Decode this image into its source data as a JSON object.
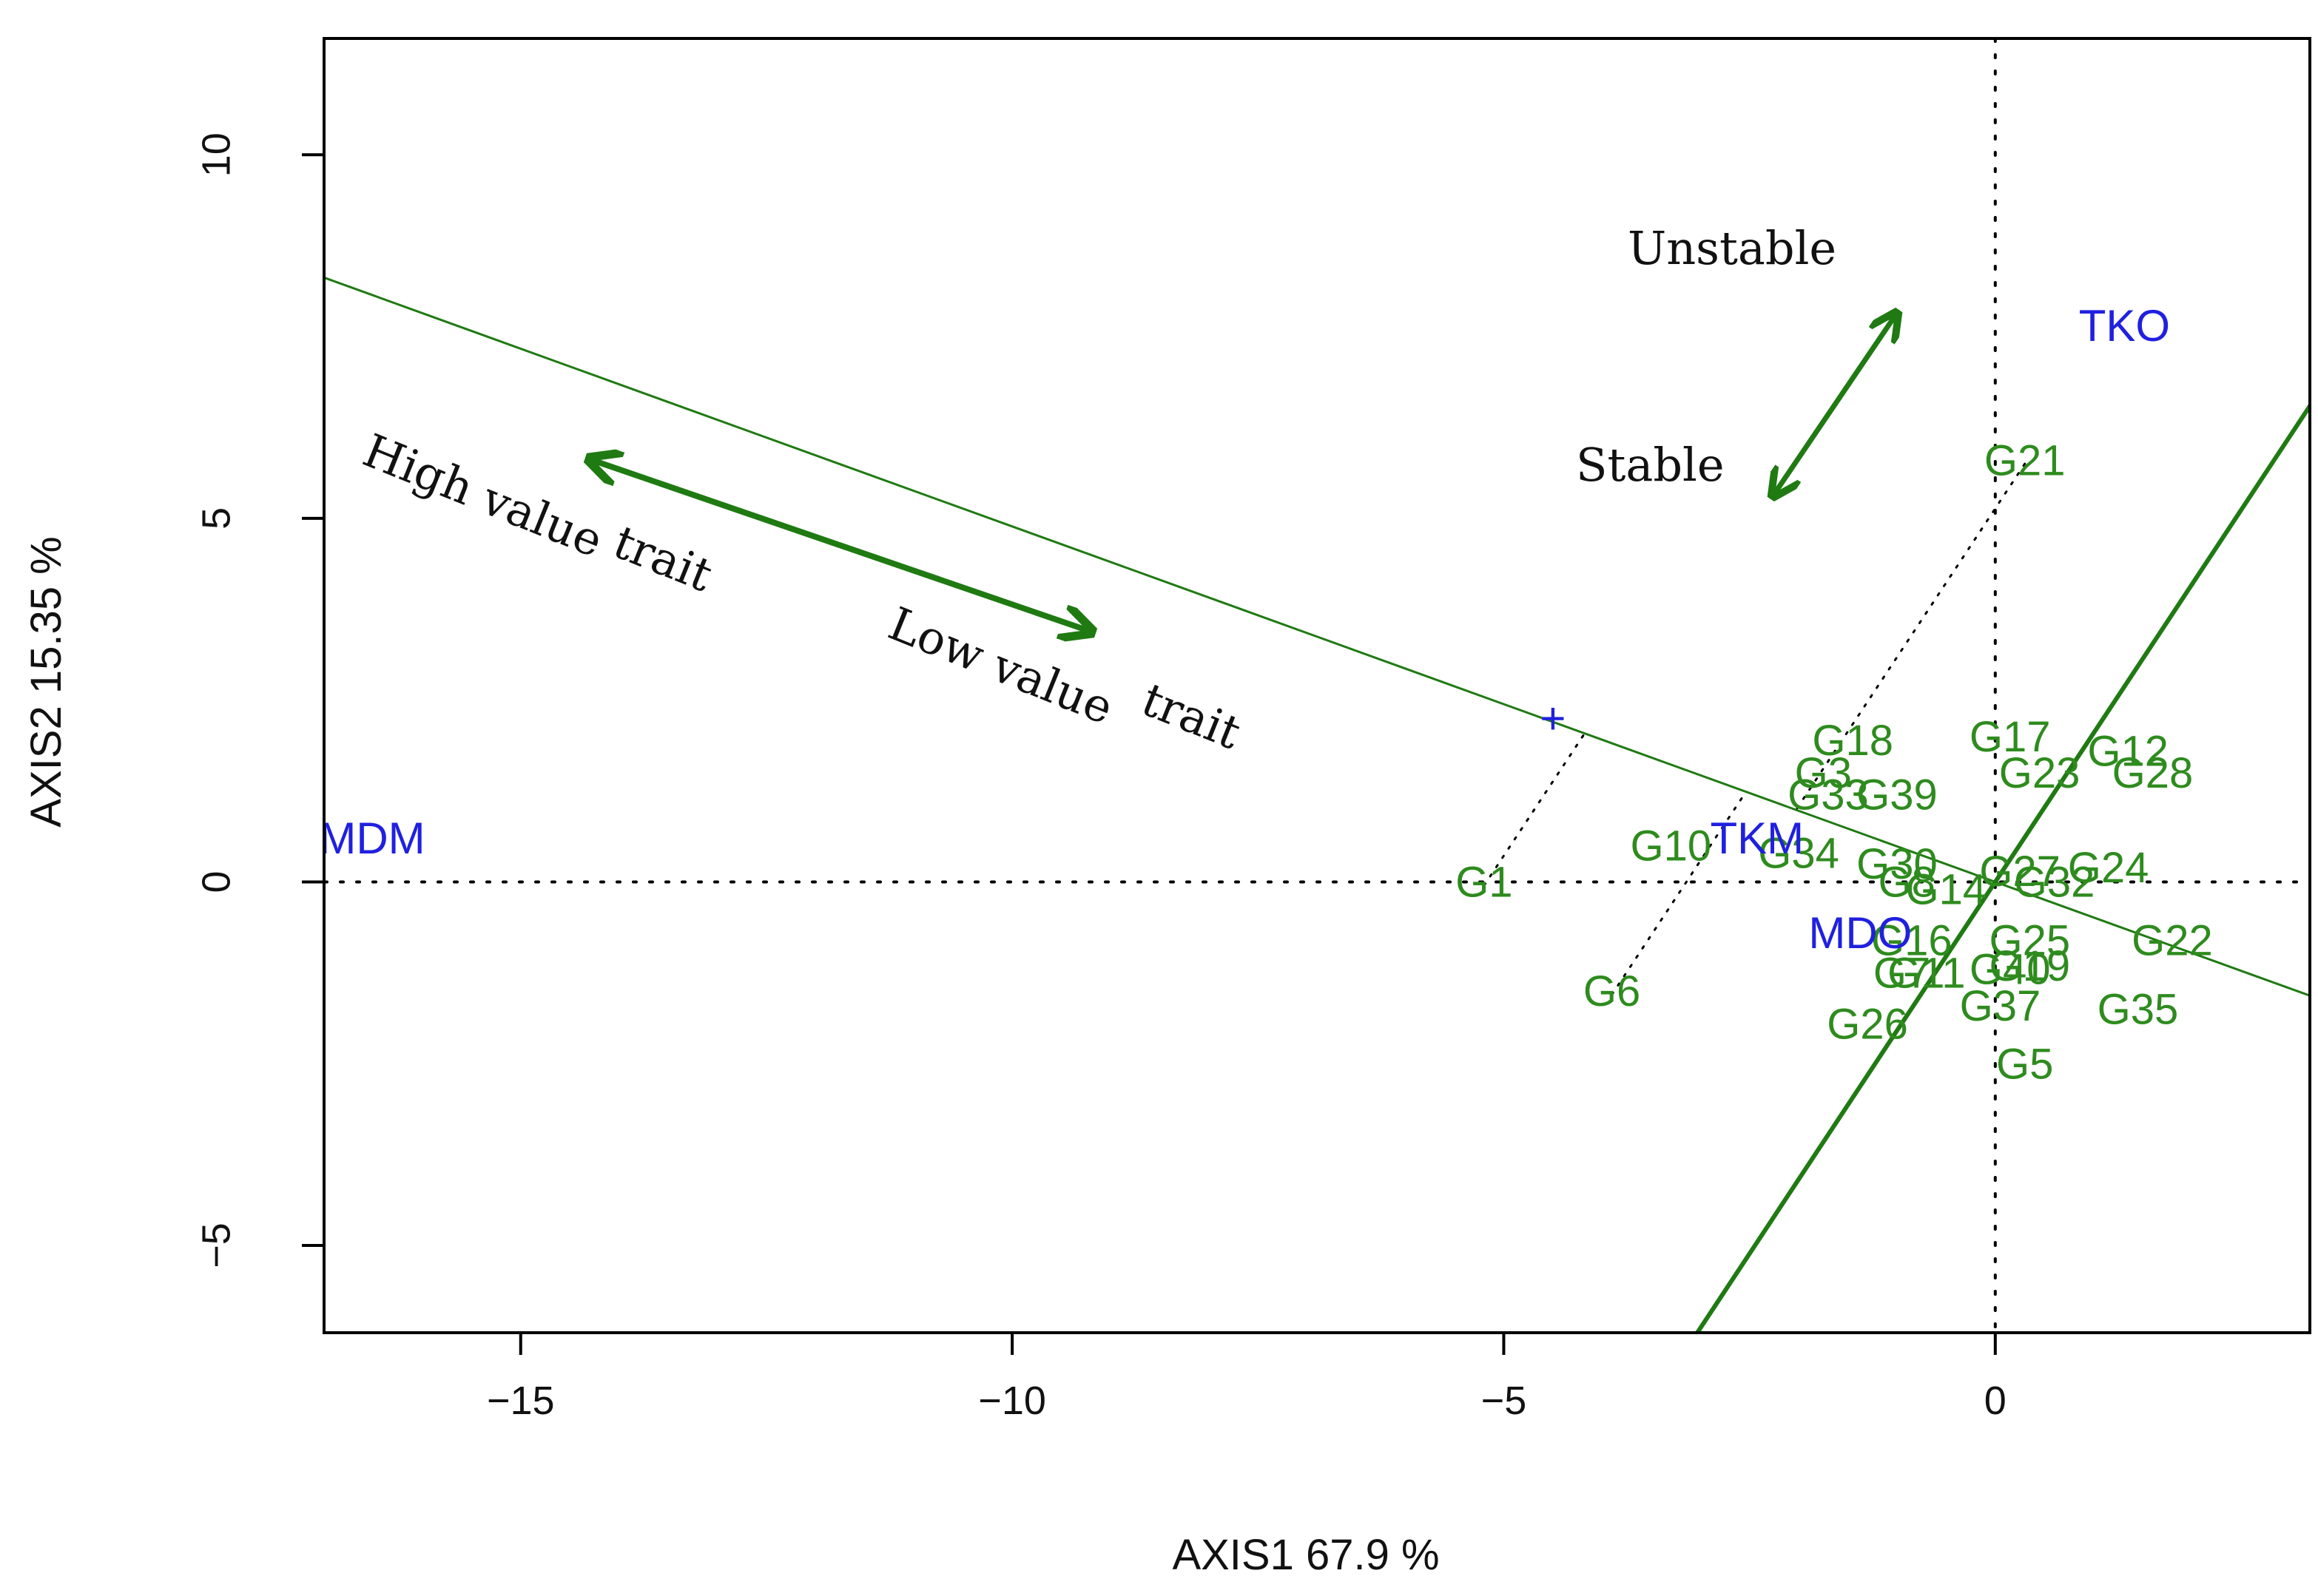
{
  "chart_data": {
    "type": "scatter",
    "title": "",
    "xlabel": "AXIS1 67.9 %",
    "ylabel": "AXIS2 15.35 %",
    "xlim": [
      -17,
      3.2
    ],
    "ylim": [
      -6.2,
      11.6
    ],
    "xticks": [
      -15,
      -10,
      -5,
      0
    ],
    "yticks": [
      -5,
      0,
      5,
      10
    ],
    "colors": {
      "genotype": "#2e8b1e",
      "environment": "#2020e0",
      "line": "#1f7a12",
      "axis": "#000000"
    },
    "environments": [
      {
        "label": "MDM",
        "x": -17.05,
        "y": 0.55
      },
      {
        "label": "TKO",
        "x": 0.85,
        "y": 7.6
      },
      {
        "label": "TKM",
        "x": -2.9,
        "y": 0.55
      },
      {
        "label": "MDO",
        "x": -1.9,
        "y": -0.75
      }
    ],
    "average_environment": {
      "label": "+",
      "x": -4.5,
      "y": 2.2
    },
    "genotypes": [
      {
        "label": "G1",
        "x": -5.2,
        "y": -0.05
      },
      {
        "label": "G6",
        "x": -3.9,
        "y": -1.55
      },
      {
        "label": "G21",
        "x": 0.3,
        "y": 5.75
      },
      {
        "label": "G18",
        "x": -1.45,
        "y": 1.9
      },
      {
        "label": "G17",
        "x": 0.15,
        "y": 1.95
      },
      {
        "label": "G12",
        "x": 1.35,
        "y": 1.75
      },
      {
        "label": "G28",
        "x": 1.6,
        "y": 1.45
      },
      {
        "label": "G23",
        "x": 0.45,
        "y": 1.45
      },
      {
        "label": "G3",
        "x": -1.75,
        "y": 1.45
      },
      {
        "label": "G33",
        "x": -1.7,
        "y": 1.15
      },
      {
        "label": "G39",
        "x": -1.0,
        "y": 1.15
      },
      {
        "label": "G10",
        "x": -3.3,
        "y": 0.45
      },
      {
        "label": "G34",
        "x": -2.0,
        "y": 0.35
      },
      {
        "label": "G30",
        "x": -1.0,
        "y": 0.2
      },
      {
        "label": "G27",
        "x": 0.25,
        "y": 0.1
      },
      {
        "label": "G24",
        "x": 1.15,
        "y": 0.15
      },
      {
        "label": "G32",
        "x": 0.6,
        "y": -0.05
      },
      {
        "label": "G8",
        "x": -0.9,
        "y": -0.05
      },
      {
        "label": "G14",
        "x": -0.5,
        "y": -0.15
      },
      {
        "label": "G25",
        "x": 0.35,
        "y": -0.85
      },
      {
        "label": "G22",
        "x": 1.8,
        "y": -0.85
      },
      {
        "label": "G16",
        "x": -0.85,
        "y": -0.85
      },
      {
        "label": "G19",
        "x": 0.35,
        "y": -1.2
      },
      {
        "label": "G40",
        "x": 0.15,
        "y": -1.25
      },
      {
        "label": "G11",
        "x": -0.7,
        "y": -1.3
      },
      {
        "label": "G7",
        "x": -0.95,
        "y": -1.3
      },
      {
        "label": "G37",
        "x": 0.05,
        "y": -1.75
      },
      {
        "label": "G35",
        "x": 1.45,
        "y": -1.8
      },
      {
        "label": "G26",
        "x": -1.3,
        "y": -2.0
      },
      {
        "label": "G5",
        "x": 0.3,
        "y": -2.55
      }
    ],
    "annotations": {
      "unstable": "Unstable",
      "stable": "Stable",
      "high_value": "High value",
      "high_trait": "trait",
      "low_value": "Low value",
      "low_trait": "trait"
    }
  }
}
